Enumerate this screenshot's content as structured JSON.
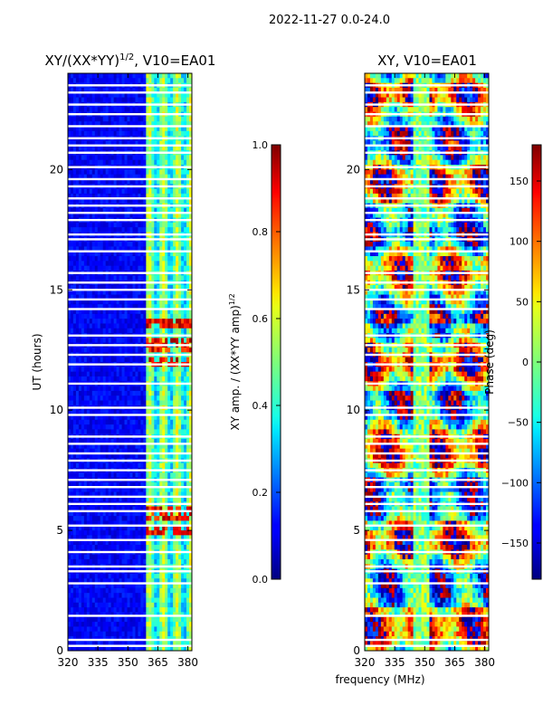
{
  "suptitle": "2022-11-27 0.0-24.0",
  "chart_data": [
    {
      "type": "heatmap",
      "title_base": "XY/(XX*YY)",
      "title_exp": "1/2",
      "title_suffix": ", V10=EA01",
      "xlabel": "",
      "ylabel": "UT (hours)",
      "xlim": [
        320,
        382
      ],
      "ylim": [
        0,
        24
      ],
      "xticks": [
        320,
        335,
        350,
        365,
        380
      ],
      "yticks": [
        0,
        5,
        10,
        15,
        20
      ],
      "colorbar": {
        "label_base": "XY amp. / (XX*YY amp)",
        "label_exp": "1/2",
        "range": [
          0.0,
          1.0
        ],
        "ticks": [
          0.0,
          0.2,
          0.4,
          0.6,
          0.8,
          1.0
        ],
        "tick_labels": [
          "0.0",
          "0.2",
          "0.4",
          "0.6",
          "0.8",
          "1.0"
        ]
      },
      "description_series": {
        "low_band_mhz": [
          320,
          359
        ],
        "low_band_level": 0.12,
        "high_band_mhz": [
          359,
          382
        ],
        "high_band_level": 0.45,
        "hot_spot_hours": [
          5,
          5.7,
          12,
          12.7,
          13.6
        ]
      }
    },
    {
      "type": "heatmap",
      "title": "XY, V10=EA01",
      "xlabel": "frequency (MHz)",
      "ylabel": "",
      "xlim": [
        320,
        382
      ],
      "ylim": [
        0,
        24
      ],
      "xticks": [
        320,
        335,
        350,
        365,
        380
      ],
      "yticks": [
        0,
        5,
        10,
        15,
        20
      ],
      "colorbar": {
        "label": "Phase (deg)",
        "range": [
          -180,
          180
        ],
        "ticks": [
          -150,
          -100,
          -50,
          0,
          50,
          100,
          150
        ],
        "tick_labels": [
          "−150",
          "−100",
          "−50",
          "0",
          "50",
          "100",
          "150"
        ]
      }
    }
  ],
  "flagged_hours": [
    0.2,
    0.45,
    1.45,
    2.8,
    3.3,
    3.5,
    4.1,
    4.6,
    5.2,
    5.8,
    6.1,
    6.4,
    6.8,
    7.1,
    7.5,
    7.9,
    8.2,
    8.6,
    8.9,
    9.8,
    10.1,
    11.1,
    11.9,
    12.3,
    12.7,
    13.1,
    14.2,
    14.6,
    15.0,
    15.3,
    15.7,
    16.6,
    17.1,
    17.3,
    17.9,
    18.2,
    18.5,
    18.8,
    19.3,
    19.6,
    20.1,
    20.7,
    21.0,
    21.3,
    21.8,
    22.3,
    22.7,
    23.2,
    23.5
  ]
}
